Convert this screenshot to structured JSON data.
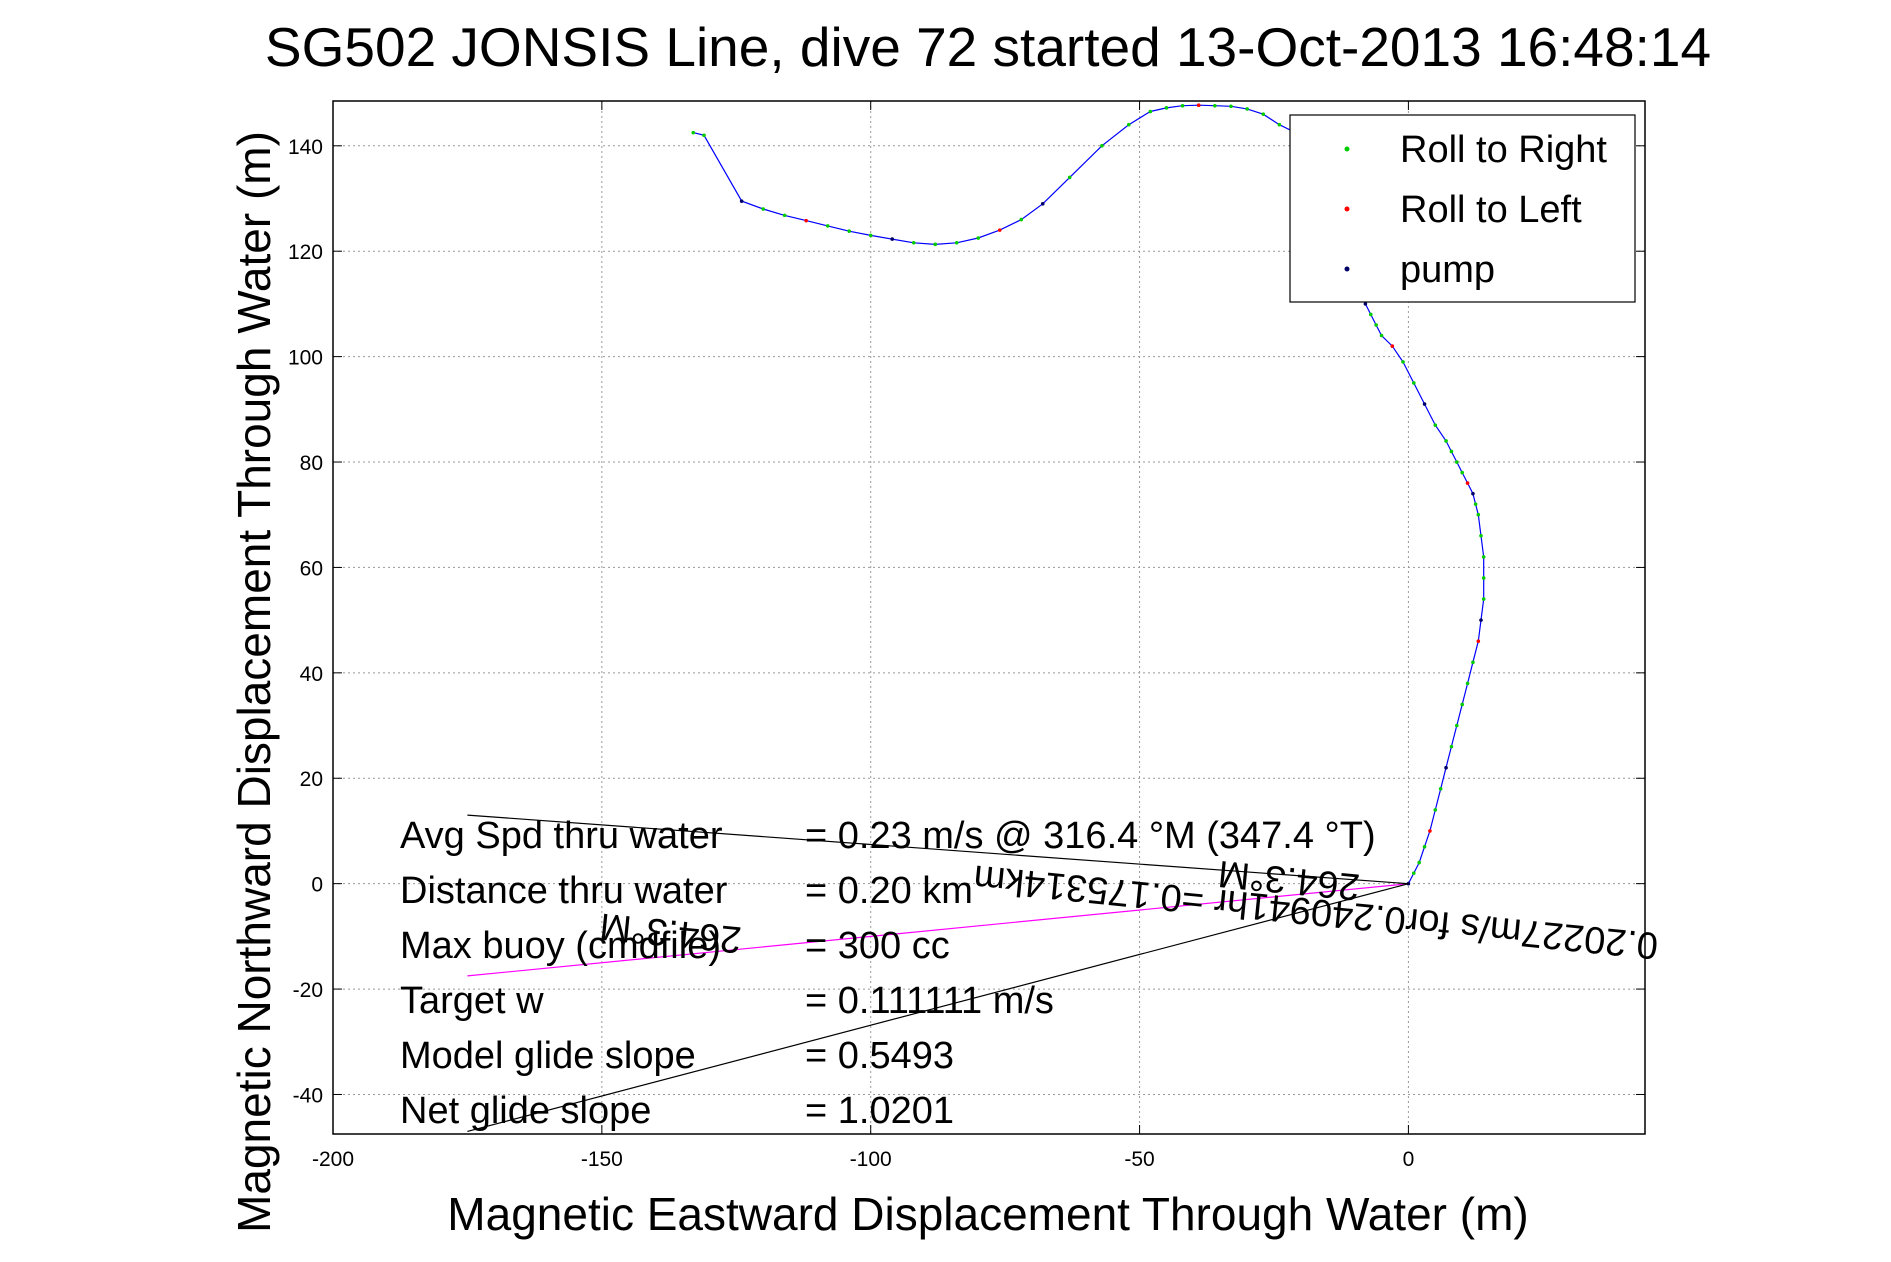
{
  "chart_data": {
    "type": "line",
    "title": "SG502 JONSIS Line, dive 72 started 13-Oct-2013 16:48:14",
    "xlabel": "Magnetic Eastward Displacement Through Water (m)",
    "ylabel": "Magnetic Northward Displacement Through Water (m)",
    "xlim": [
      -200,
      44
    ],
    "ylim": [
      -47.5,
      148.5
    ],
    "xticks": [
      -200,
      -150,
      -100,
      -50,
      0
    ],
    "yticks": [
      -40,
      -20,
      0,
      20,
      40,
      60,
      80,
      100,
      120,
      140
    ],
    "grid": true,
    "legend": {
      "placement": "top-right",
      "entries": [
        {
          "label": "Roll to Right",
          "color": "#00cc00"
        },
        {
          "label": "Roll to Left",
          "color": "#ff0000"
        },
        {
          "label": "pump",
          "color": "#000066"
        }
      ]
    },
    "series": [
      {
        "color": "#0000ff",
        "x": [
          0,
          1,
          2,
          3,
          4,
          5,
          6,
          7,
          8,
          9,
          10,
          11,
          12,
          13,
          13.5,
          14,
          14,
          14,
          13.5,
          13,
          12.5,
          12,
          11,
          10,
          9,
          8,
          7,
          5,
          3,
          1,
          -1,
          -3,
          -5,
          -6,
          -7,
          -8,
          -9,
          -10,
          -11,
          -11,
          -12,
          -14,
          -17,
          -20,
          -24,
          -27,
          -30,
          -33,
          -36,
          -39,
          -42,
          -45,
          -48,
          -52,
          -57,
          -63,
          -68,
          -72,
          -76,
          -80,
          -84,
          -88,
          -92,
          -96,
          -100,
          -104,
          -108,
          -112,
          -116,
          -120,
          -124,
          -131,
          -133
        ],
        "y": [
          0,
          2,
          4,
          7,
          10,
          14,
          18,
          22,
          26,
          30,
          34,
          38,
          42,
          46,
          50,
          54,
          58,
          62,
          66,
          70,
          72,
          74,
          76,
          78,
          80,
          82,
          84,
          87,
          91,
          95,
          99,
          102,
          104,
          106,
          108,
          110,
          112,
          115,
          118,
          122,
          126,
          135,
          139,
          142,
          144,
          146,
          147,
          147.5,
          147.6,
          147.7,
          147.6,
          147.2,
          146.5,
          144,
          140,
          134,
          129,
          126,
          124,
          122.5,
          121.6,
          121.3,
          121.6,
          122.3,
          123,
          123.8,
          124.8,
          125.8,
          126.8,
          128,
          129.5,
          142,
          142.5
        ]
      },
      {
        "color": "#ff00ff",
        "x": [
          0,
          -175
        ],
        "y": [
          0,
          -17.5
        ]
      },
      {
        "color": "#000000",
        "x": [
          -175,
          0,
          -175
        ],
        "y": [
          13,
          0,
          -47
        ]
      }
    ],
    "annotations": [
      {
        "label": "Avg Spd thru water",
        "value": "=  0.23 m/s @ 316.4 °M (347.4 °T)"
      },
      {
        "label": "Distance thru water",
        "value": "=  0.20 km"
      },
      {
        "label": "Max buoy (cmdfile)",
        "value": "= 300 cc"
      },
      {
        "label": "Target w",
        "value": "= 0.111111 m/s"
      },
      {
        "label": "Model glide slope",
        "value": "= 0.5493"
      },
      {
        "label": "Net glide slope",
        "value": "= 1.0201"
      }
    ],
    "rotated_labels": [
      {
        "text": "0.20227m/s for0.240941hr =0.175314km",
        "x": -17,
        "y": -3,
        "angle": 185.7
      },
      {
        "text": "264.3°M",
        "x": -22,
        "y": 3,
        "angle": 185.7
      },
      {
        "text": "264.3°M",
        "x": -137,
        "y": -7,
        "angle": 185.7
      }
    ]
  }
}
